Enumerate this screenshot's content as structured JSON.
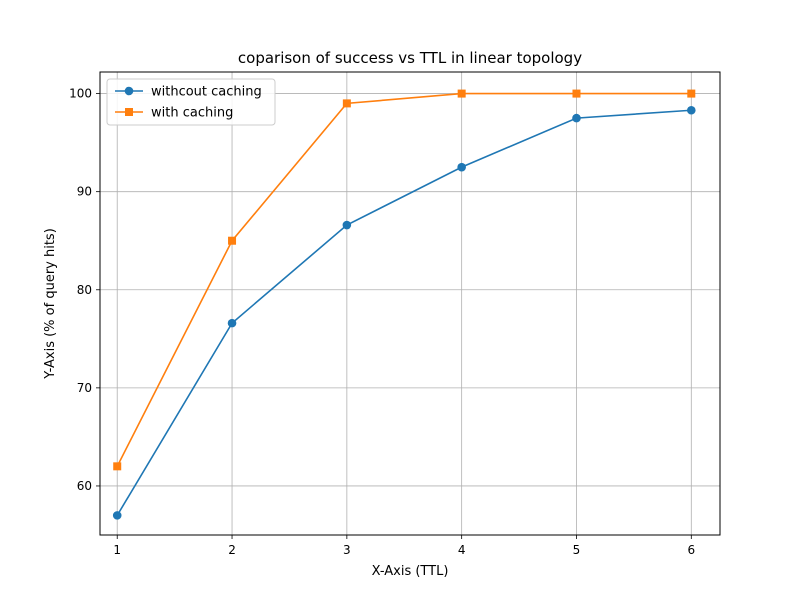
{
  "chart_data": {
    "type": "line",
    "title": "coparison of success vs TTL in linear topology",
    "xlabel": "X-Axis (TTL)",
    "ylabel": "Y-Axis (% of query hits)",
    "x": [
      1,
      2,
      3,
      4,
      5,
      6
    ],
    "xlim": [
      0.85,
      6.25
    ],
    "ylim": [
      55,
      102.2
    ],
    "xticks": [
      1,
      2,
      3,
      4,
      5,
      6
    ],
    "yticks": [
      60,
      70,
      80,
      90,
      100
    ],
    "grid": true,
    "legend_position": "top-left",
    "series": [
      {
        "name": "withcout caching",
        "values": [
          57.0,
          76.6,
          86.6,
          92.5,
          97.5,
          98.3
        ],
        "color": "#1f77b4",
        "marker": "circle"
      },
      {
        "name": "with caching",
        "values": [
          62.0,
          85.0,
          99.0,
          100.0,
          100.0,
          100.0
        ],
        "color": "#ff7f0e",
        "marker": "square"
      }
    ]
  }
}
